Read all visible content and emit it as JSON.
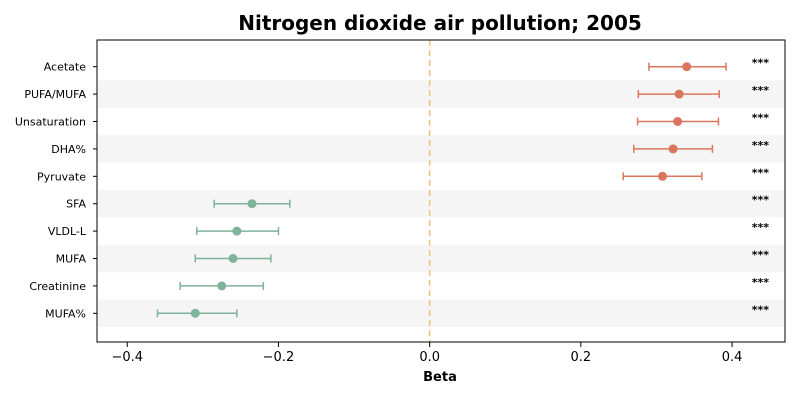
{
  "chart_data": {
    "type": "forest",
    "title": "Nitrogen dioxide air pollution; 2005",
    "xlabel": "Beta",
    "ylabel": "",
    "xlim": [
      -0.44,
      0.47
    ],
    "xticks": [
      -0.4,
      -0.2,
      0.0,
      0.2,
      0.4
    ],
    "xtick_labels": [
      "−0.4",
      "−0.2",
      "0.0",
      "0.2",
      "0.4"
    ],
    "reference_line": 0.0,
    "colors": {
      "positive": "#d9775e",
      "negative": "#7fb39a",
      "reference": "#f0c27f",
      "band": "#f5f5f5",
      "axis": "#000000"
    },
    "rows": [
      {
        "label": "Acetate",
        "beta": 0.34,
        "lower": 0.29,
        "upper": 0.392,
        "sig": "***"
      },
      {
        "label": "PUFA/MUFA",
        "beta": 0.33,
        "lower": 0.276,
        "upper": 0.383,
        "sig": "***"
      },
      {
        "label": "Unsaturation",
        "beta": 0.328,
        "lower": 0.275,
        "upper": 0.382,
        "sig": "***"
      },
      {
        "label": "DHA%",
        "beta": 0.322,
        "lower": 0.27,
        "upper": 0.374,
        "sig": "***"
      },
      {
        "label": "Pyruvate",
        "beta": 0.308,
        "lower": 0.256,
        "upper": 0.36,
        "sig": "***"
      },
      {
        "label": "SFA",
        "beta": -0.235,
        "lower": -0.285,
        "upper": -0.185,
        "sig": "***"
      },
      {
        "label": "VLDL-L",
        "beta": -0.255,
        "lower": -0.308,
        "upper": -0.2,
        "sig": "***"
      },
      {
        "label": "MUFA",
        "beta": -0.26,
        "lower": -0.31,
        "upper": -0.21,
        "sig": "***"
      },
      {
        "label": "Creatinine",
        "beta": -0.275,
        "lower": -0.33,
        "upper": -0.22,
        "sig": "***"
      },
      {
        "label": "MUFA%",
        "beta": -0.31,
        "lower": -0.36,
        "upper": -0.255,
        "sig": "***"
      }
    ]
  }
}
